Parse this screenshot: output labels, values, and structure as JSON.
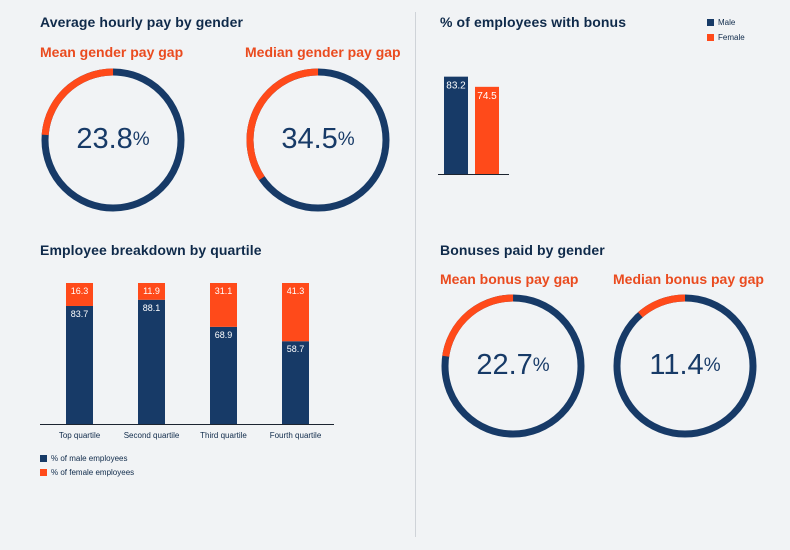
{
  "colors": {
    "male": "#173a67",
    "female": "#ff4a1a",
    "title": "#0f2a4a",
    "accent_title": "#ea4b1f",
    "background": "#f1f3f5"
  },
  "hourly_pay": {
    "title": "Average hourly pay by gender",
    "mean_title": "Mean gender pay gap",
    "median_title": "Median gender pay gap",
    "mean_number": "23.8",
    "median_number": "34.5",
    "percent_sign": "%"
  },
  "bonus_share": {
    "title": "% of employees with bonus",
    "legend_male": "Male",
    "legend_female": "Female"
  },
  "quartiles": {
    "title": "Employee breakdown by quartile",
    "legend_male": "% of male employees",
    "legend_female": "% of female employees"
  },
  "bonuses_paid": {
    "title": "Bonuses paid by gender",
    "mean_title": "Mean bonus pay gap",
    "median_title": "Median bonus pay gap",
    "mean_number": "22.7",
    "median_number": "11.4",
    "percent_sign": "%"
  },
  "chart_data": [
    {
      "type": "pie",
      "title": "Mean gender pay gap",
      "value": 23.8,
      "unit": "%"
    },
    {
      "type": "pie",
      "title": "Median gender pay gap",
      "value": 34.5,
      "unit": "%"
    },
    {
      "type": "bar",
      "title": "% of employees with bonus",
      "categories": [
        "Male",
        "Female"
      ],
      "values": [
        83.2,
        74.5
      ],
      "legend": "top-right"
    },
    {
      "type": "bar",
      "stacked": true,
      "title": "Employee breakdown by quartile",
      "categories": [
        "Top quartile",
        "Second quartile",
        "Third quartile",
        "Fourth quartile"
      ],
      "series": [
        {
          "name": "% of male employees",
          "values": [
            83.7,
            88.1,
            68.9,
            58.7
          ]
        },
        {
          "name": "% of female employees",
          "values": [
            16.3,
            11.9,
            31.1,
            41.3
          ]
        }
      ],
      "ylim": [
        0,
        100
      ],
      "legend": "bottom-left"
    },
    {
      "type": "pie",
      "title": "Mean bonus pay gap",
      "value": 22.7,
      "unit": "%"
    },
    {
      "type": "pie",
      "title": "Median bonus pay gap",
      "value": 11.4,
      "unit": "%"
    }
  ]
}
